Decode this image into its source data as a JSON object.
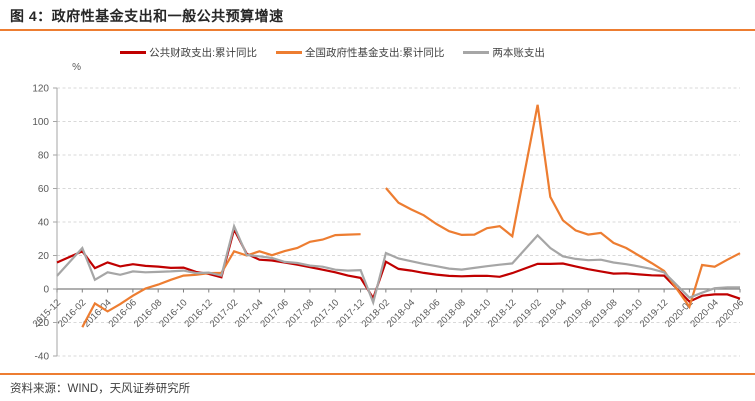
{
  "header": {
    "title": "图 4：政府性基金支出和一般公共预算增速"
  },
  "footer": {
    "source": "资料来源：WIND，天风证券研究所"
  },
  "colors": {
    "accent_rule": "#ED7D31",
    "gridline": "#D9D9D9",
    "axis_line": "#A6A6A6",
    "zero_line": "#7F7F7F",
    "tick_label": "#595959"
  },
  "chart_data": {
    "type": "line",
    "title": "政府性基金支出和一般公共预算增速",
    "unit_label": "%",
    "ylabel": "",
    "xlabel": "",
    "ylim": [
      -40,
      120
    ],
    "y_ticks": [
      -40,
      -20,
      0,
      20,
      40,
      60,
      80,
      100,
      120
    ],
    "grid": "dashed-horizontal",
    "legend_position": "top-center",
    "x": [
      "2015-12",
      "2016-01",
      "2016-02",
      "2016-03",
      "2016-04",
      "2016-05",
      "2016-06",
      "2016-07",
      "2016-08",
      "2016-09",
      "2016-10",
      "2016-11",
      "2016-12",
      "2017-01",
      "2017-02",
      "2017-03",
      "2017-04",
      "2017-05",
      "2017-06",
      "2017-07",
      "2017-08",
      "2017-09",
      "2017-10",
      "2017-11",
      "2017-12",
      "2018-01",
      "2018-02",
      "2018-03",
      "2018-04",
      "2018-05",
      "2018-06",
      "2018-07",
      "2018-08",
      "2018-09",
      "2018-10",
      "2018-11",
      "2018-12",
      "2019-01",
      "2019-02",
      "2019-03",
      "2019-04",
      "2019-05",
      "2019-06",
      "2019-07",
      "2019-08",
      "2019-09",
      "2019-10",
      "2019-11",
      "2019-12",
      "2020-01",
      "2020-02",
      "2020-03",
      "2020-04",
      "2020-05",
      "2020-06"
    ],
    "x_tick_labels": [
      "2015-12",
      "2016-02",
      "2016-04",
      "2016-06",
      "2016-08",
      "2016-10",
      "2016-12",
      "2017-02",
      "2017-04",
      "2017-06",
      "2017-08",
      "2017-10",
      "2017-12",
      "2018-02",
      "2018-04",
      "2018-06",
      "2018-08",
      "2018-10",
      "2018-12",
      "2019-02",
      "2019-04",
      "2019-06",
      "2019-08",
      "2019-10",
      "2019-12",
      "2020-02",
      "2020-04",
      "2020-06"
    ],
    "series": [
      {
        "name": "公共财政支出:累计同比",
        "color": "#C00000",
        "values": [
          15.8,
          null,
          22.5,
          12.5,
          15.9,
          13.5,
          14.8,
          13.8,
          13.4,
          12.6,
          12.8,
          10.2,
          9.0,
          7.0,
          35.5,
          21.0,
          17.5,
          17.0,
          15.8,
          14.5,
          13.0,
          11.5,
          10.0,
          8.0,
          6.6,
          -5.5,
          16.3,
          12.0,
          11.0,
          9.6,
          8.6,
          7.8,
          7.6,
          7.8,
          7.9,
          7.3,
          9.5,
          null,
          15.0,
          15.0,
          15.2,
          13.5,
          11.8,
          10.5,
          9.2,
          9.4,
          8.7,
          8.2,
          8.0,
          null,
          -7.5,
          -4.0,
          -3.2,
          -3.2,
          -5.8
        ]
      },
      {
        "name": "全国政府性基金支出:累计同比",
        "color": "#ED7D31",
        "values": [
          null,
          null,
          -22.8,
          -8.6,
          -13.4,
          -9.0,
          -4.0,
          0.3,
          2.6,
          5.5,
          8.0,
          8.5,
          9.5,
          9.7,
          22.5,
          20.0,
          22.5,
          20.2,
          22.6,
          24.5,
          28.2,
          29.5,
          32.2,
          32.5,
          32.7,
          "break",
          60.3,
          51.5,
          47.5,
          44.0,
          38.8,
          34.5,
          32.3,
          32.5,
          36.3,
          37.5,
          31.5,
          null,
          110.0,
          55.0,
          41.0,
          35.0,
          32.5,
          33.5,
          27.5,
          24.5,
          20.0,
          15.5,
          10.8,
          null,
          -10.6,
          14.3,
          13.3,
          17.5,
          21.4
        ]
      },
      {
        "name": "两本账支出",
        "color": "#A6A6A6",
        "values": [
          7.8,
          null,
          24.5,
          5.5,
          10.0,
          8.5,
          10.5,
          10.0,
          10.2,
          10.5,
          11.0,
          9.5,
          9.8,
          8.0,
          37.5,
          20.3,
          19.5,
          18.5,
          16.2,
          15.5,
          14.0,
          13.3,
          11.5,
          11.0,
          11.3,
          -8.0,
          21.5,
          18.2,
          16.6,
          15.0,
          13.6,
          12.2,
          11.6,
          12.6,
          13.6,
          14.5,
          15.3,
          null,
          32.0,
          24.5,
          19.5,
          18.0,
          17.2,
          17.5,
          15.8,
          14.8,
          13.5,
          12.0,
          10.0,
          null,
          -5.2,
          -2.2,
          0.5,
          1.0,
          1.0
        ]
      }
    ]
  }
}
